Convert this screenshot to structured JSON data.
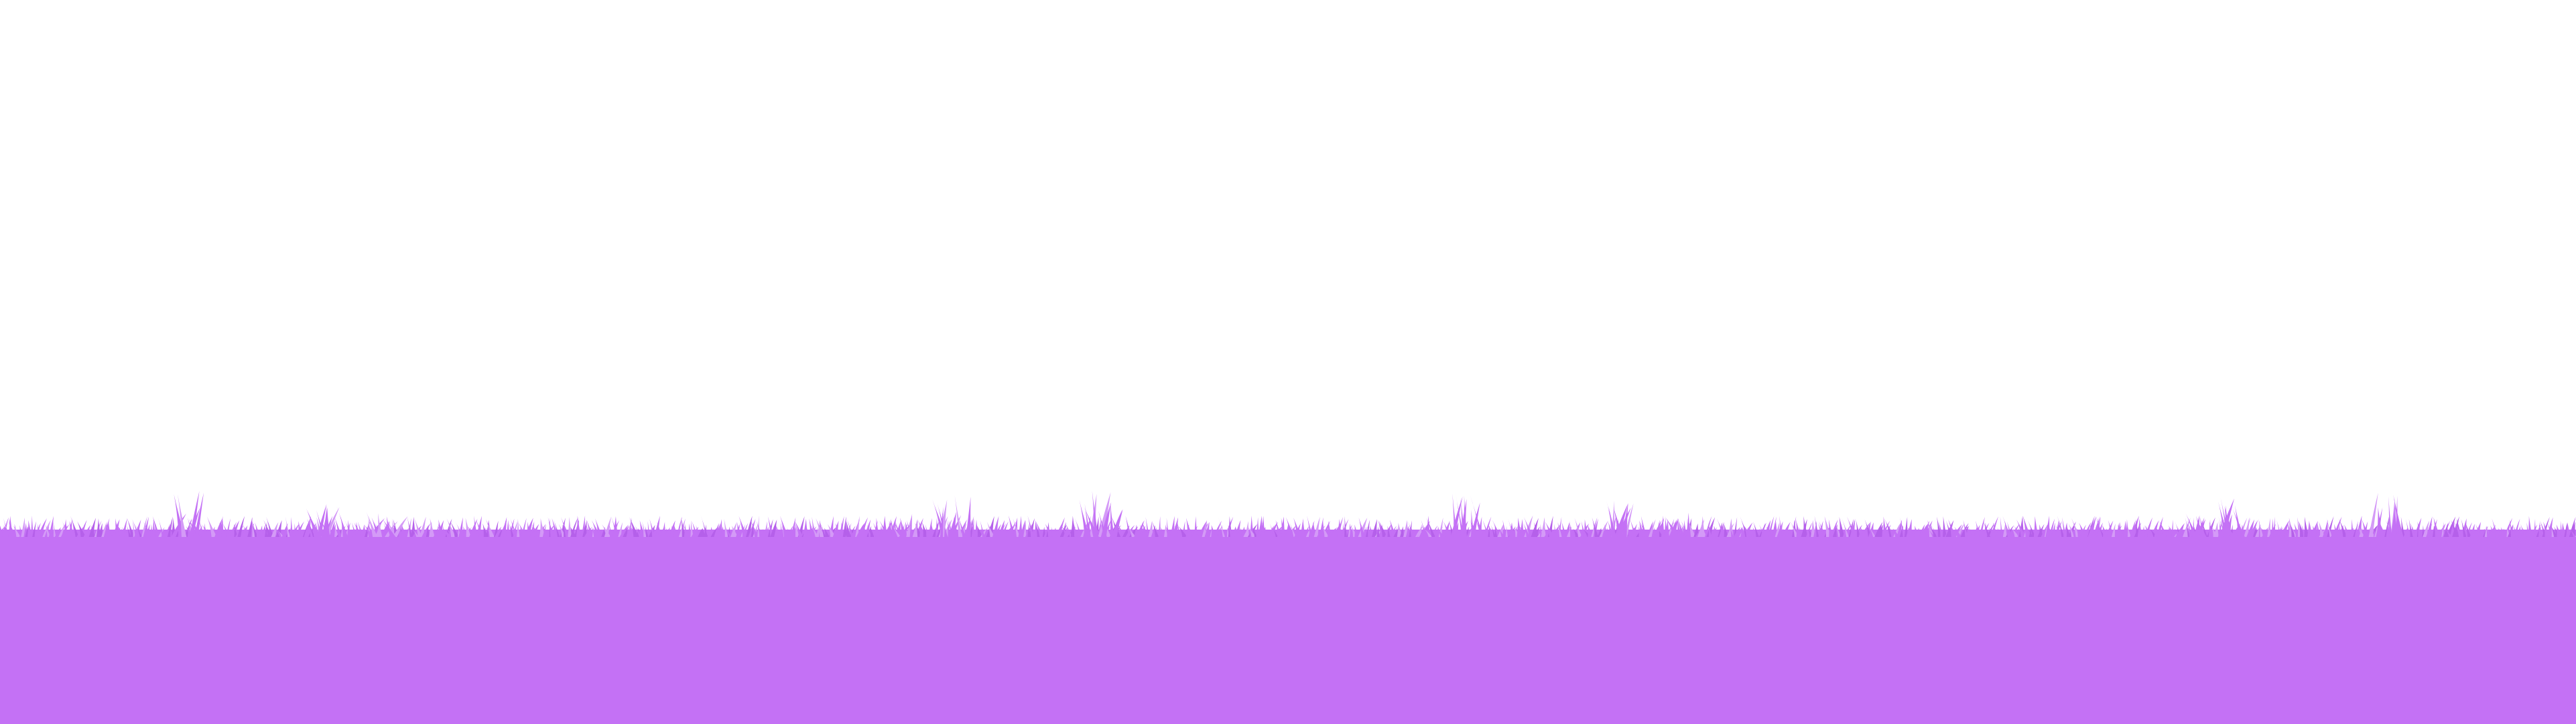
{
  "scene": {
    "background_color": "#ffffff",
    "grass_color": "#c471f5",
    "grass_highlight_color": "#d49af7",
    "grass_shadow_color": "#b560ea",
    "decoration": "grass-silhouette"
  }
}
